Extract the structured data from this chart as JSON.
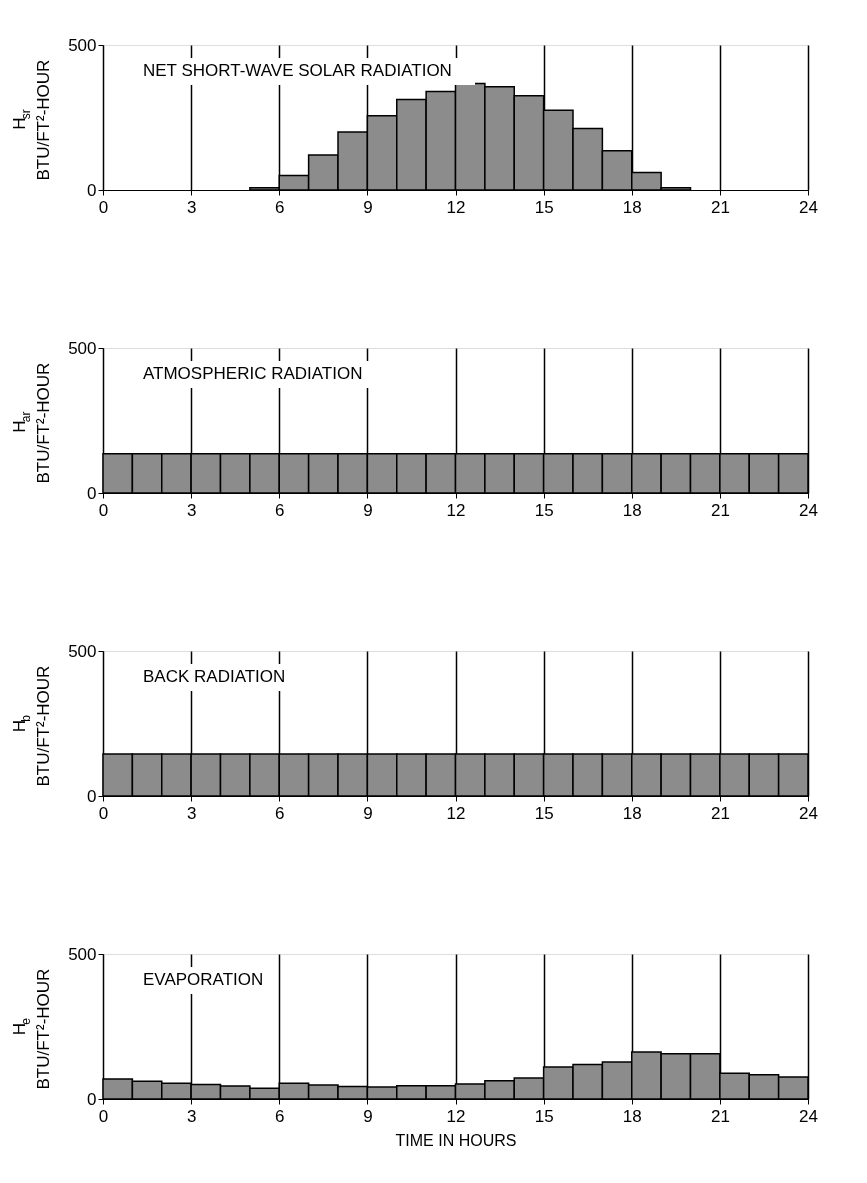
{
  "chart_data": [
    {
      "type": "histogram",
      "title": "NET SHORT-WAVE SOLAR RADIATION",
      "ylabel": "H$_{sr}$\nBTU/FT²-HOUR",
      "bins": [
        0,
        1,
        2,
        3,
        4,
        5,
        6,
        7,
        8,
        9,
        10,
        11,
        12,
        13,
        14,
        15,
        16,
        17,
        18,
        19,
        20,
        21,
        22,
        23,
        24
      ],
      "values": [
        0,
        0,
        0,
        0,
        0,
        8,
        50,
        121,
        200,
        256,
        312,
        340,
        367,
        356,
        325,
        275,
        212,
        135,
        60,
        8,
        0,
        0,
        0,
        0
      ],
      "color": "#8c8c8c",
      "xlim": [
        0,
        24
      ],
      "xticks": [
        0,
        3,
        6,
        9,
        12,
        15,
        18,
        21,
        24
      ],
      "ylim": [
        0,
        500
      ],
      "yticks": [
        0,
        500
      ],
      "grid": "x"
    },
    {
      "type": "histogram",
      "title": "ATMOSPHERIC RADIATION",
      "ylabel": "H$_{ar}$\nBTU/FT²-HOUR",
      "bins": [
        0,
        1,
        2,
        3,
        4,
        5,
        6,
        7,
        8,
        9,
        10,
        11,
        12,
        13,
        14,
        15,
        16,
        17,
        18,
        19,
        20,
        21,
        22,
        23,
        24
      ],
      "values": [
        135,
        135,
        135,
        135,
        135,
        135,
        135,
        135,
        135,
        135,
        135,
        135,
        135,
        135,
        135,
        135,
        135,
        135,
        135,
        135,
        135,
        135,
        135,
        135
      ],
      "color": "#8c8c8c",
      "xlim": [
        0,
        24
      ],
      "xticks": [
        0,
        3,
        6,
        9,
        12,
        15,
        18,
        21,
        24
      ],
      "ylim": [
        0,
        500
      ],
      "yticks": [
        0,
        500
      ],
      "grid": "x"
    },
    {
      "type": "histogram",
      "title": "BACK RADIATION",
      "ylabel": "H$_{b}$\nBTU/FT²-HOUR",
      "bins": [
        0,
        1,
        2,
        3,
        4,
        5,
        6,
        7,
        8,
        9,
        10,
        11,
        12,
        13,
        14,
        15,
        16,
        17,
        18,
        19,
        20,
        21,
        22,
        23,
        24
      ],
      "values": [
        145,
        145,
        145,
        145,
        145,
        145,
        145,
        145,
        145,
        145,
        145,
        145,
        145,
        145,
        145,
        145,
        145,
        145,
        145,
        145,
        145,
        145,
        145,
        145
      ],
      "color": "#8c8c8c",
      "xlim": [
        0,
        24
      ],
      "xticks": [
        0,
        3,
        6,
        9,
        12,
        15,
        18,
        21,
        24
      ],
      "ylim": [
        0,
        500
      ],
      "yticks": [
        0,
        500
      ],
      "grid": "x"
    },
    {
      "type": "histogram",
      "title": "EVAPORATION",
      "ylabel": "H$_{e}$\nBTU/FT²-HOUR",
      "xlabel": "TIME IN HOURS",
      "bins": [
        0,
        1,
        2,
        3,
        4,
        5,
        6,
        7,
        8,
        9,
        10,
        11,
        12,
        13,
        14,
        15,
        16,
        17,
        18,
        19,
        20,
        21,
        22,
        23,
        24
      ],
      "values": [
        69,
        61,
        54,
        50,
        45,
        37,
        54,
        48,
        43,
        41,
        46,
        46,
        52,
        63,
        72,
        110,
        119,
        128,
        162,
        156,
        156,
        89,
        84,
        76
      ],
      "color": "#8c8c8c",
      "xlim": [
        0,
        24
      ],
      "xticks": [
        0,
        3,
        6,
        9,
        12,
        15,
        18,
        21,
        24
      ],
      "ylim": [
        0,
        500
      ],
      "yticks": [
        0,
        500
      ],
      "grid": "x"
    }
  ]
}
